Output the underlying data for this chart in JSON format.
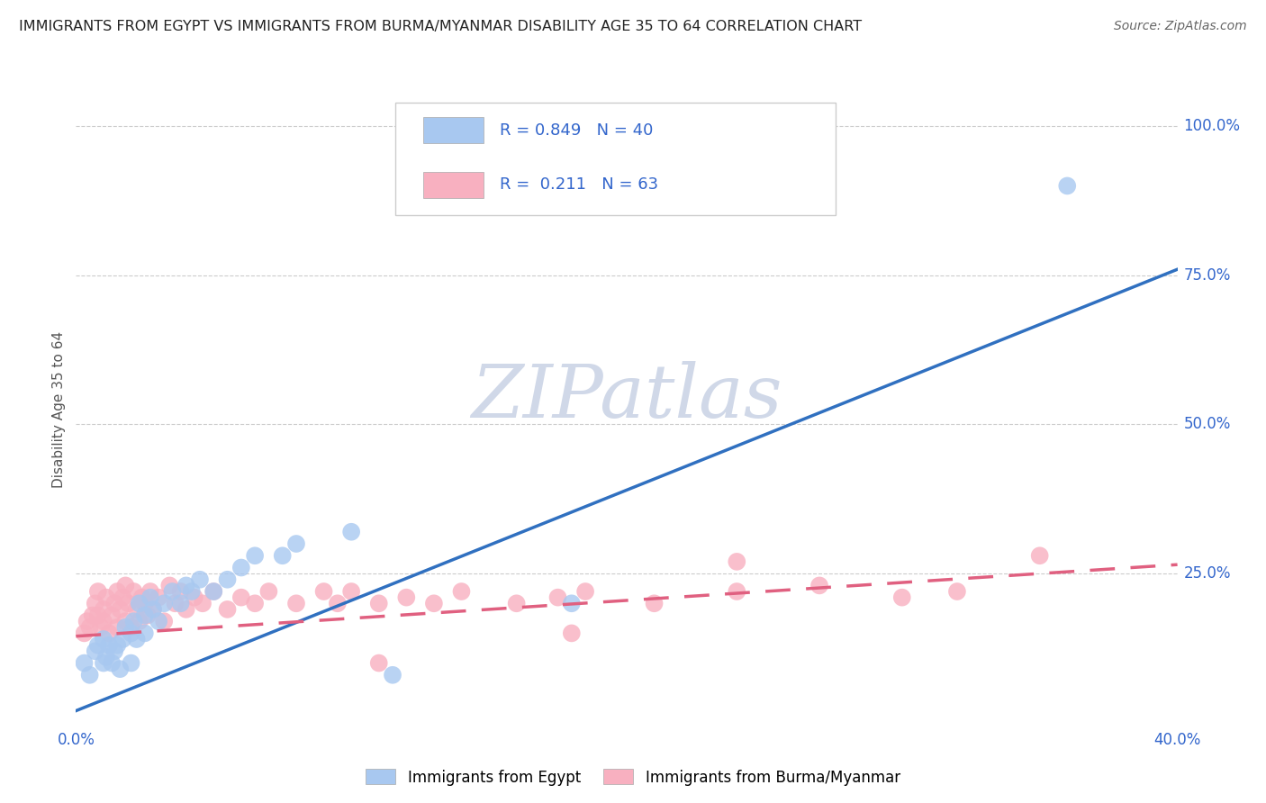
{
  "title": "IMMIGRANTS FROM EGYPT VS IMMIGRANTS FROM BURMA/MYANMAR DISABILITY AGE 35 TO 64 CORRELATION CHART",
  "source": "Source: ZipAtlas.com",
  "ylabel": "Disability Age 35 to 64",
  "xlim": [
    0.0,
    0.4
  ],
  "ylim": [
    0.0,
    1.05
  ],
  "xticks": [
    0.0,
    0.08,
    0.16,
    0.24,
    0.32,
    0.4
  ],
  "xticklabels": [
    "0.0%",
    "",
    "",
    "",
    "",
    "40.0%"
  ],
  "yticks_right": [
    0.25,
    0.5,
    0.75,
    1.0
  ],
  "yticklabels_right": [
    "25.0%",
    "50.0%",
    "75.0%",
    "100.0%"
  ],
  "egypt_color": "#A8C8F0",
  "egypt_line_color": "#3070C0",
  "burma_color": "#F8B0C0",
  "burma_line_color": "#E06080",
  "R_egypt": 0.849,
  "N_egypt": 40,
  "R_burma": 0.211,
  "N_burma": 63,
  "legend_label_egypt": "Immigrants from Egypt",
  "legend_label_burma": "Immigrants from Burma/Myanmar",
  "watermark": "ZIPatlas",
  "background_color": "#ffffff",
  "grid_color": "#cccccc",
  "egypt_line_x0": 0.0,
  "egypt_line_y0": 0.02,
  "egypt_line_x1": 0.4,
  "egypt_line_y1": 0.76,
  "burma_line_x0": 0.0,
  "burma_line_y0": 0.145,
  "burma_line_x1": 0.4,
  "burma_line_y1": 0.265,
  "egypt_scatter_x": [
    0.003,
    0.005,
    0.007,
    0.008,
    0.01,
    0.01,
    0.011,
    0.012,
    0.013,
    0.014,
    0.015,
    0.016,
    0.017,
    0.018,
    0.02,
    0.02,
    0.021,
    0.022,
    0.023,
    0.025,
    0.025,
    0.027,
    0.028,
    0.03,
    0.032,
    0.035,
    0.038,
    0.04,
    0.042,
    0.045,
    0.05,
    0.055,
    0.06,
    0.065,
    0.075,
    0.08,
    0.1,
    0.115,
    0.18,
    0.36
  ],
  "egypt_scatter_y": [
    0.1,
    0.08,
    0.12,
    0.13,
    0.1,
    0.14,
    0.11,
    0.13,
    0.1,
    0.12,
    0.13,
    0.09,
    0.14,
    0.16,
    0.1,
    0.15,
    0.17,
    0.14,
    0.2,
    0.15,
    0.18,
    0.21,
    0.19,
    0.17,
    0.2,
    0.22,
    0.2,
    0.23,
    0.22,
    0.24,
    0.22,
    0.24,
    0.26,
    0.28,
    0.28,
    0.3,
    0.32,
    0.08,
    0.2,
    0.9
  ],
  "burma_scatter_x": [
    0.003,
    0.004,
    0.005,
    0.006,
    0.007,
    0.008,
    0.008,
    0.009,
    0.01,
    0.01,
    0.011,
    0.012,
    0.013,
    0.014,
    0.015,
    0.015,
    0.016,
    0.017,
    0.018,
    0.018,
    0.019,
    0.02,
    0.021,
    0.022,
    0.023,
    0.024,
    0.025,
    0.026,
    0.027,
    0.028,
    0.03,
    0.032,
    0.034,
    0.036,
    0.038,
    0.04,
    0.043,
    0.046,
    0.05,
    0.055,
    0.06,
    0.065,
    0.07,
    0.08,
    0.09,
    0.095,
    0.1,
    0.11,
    0.12,
    0.13,
    0.14,
    0.16,
    0.175,
    0.185,
    0.21,
    0.24,
    0.27,
    0.3,
    0.32,
    0.35,
    0.24,
    0.18,
    0.11
  ],
  "burma_scatter_y": [
    0.15,
    0.17,
    0.16,
    0.18,
    0.2,
    0.18,
    0.22,
    0.16,
    0.17,
    0.19,
    0.21,
    0.15,
    0.18,
    0.2,
    0.16,
    0.22,
    0.19,
    0.21,
    0.17,
    0.23,
    0.2,
    0.16,
    0.22,
    0.19,
    0.17,
    0.21,
    0.2,
    0.18,
    0.22,
    0.19,
    0.21,
    0.17,
    0.23,
    0.2,
    0.22,
    0.19,
    0.21,
    0.2,
    0.22,
    0.19,
    0.21,
    0.2,
    0.22,
    0.2,
    0.22,
    0.2,
    0.22,
    0.2,
    0.21,
    0.2,
    0.22,
    0.2,
    0.21,
    0.22,
    0.2,
    0.22,
    0.23,
    0.21,
    0.22,
    0.28,
    0.27,
    0.15,
    0.1
  ]
}
